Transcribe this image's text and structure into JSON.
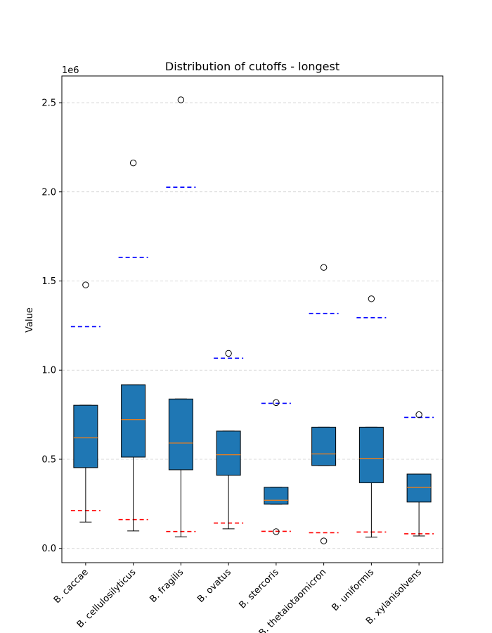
{
  "chart_data": {
    "type": "box",
    "title": "Distribution of cutoffs - longest",
    "xlabel": "",
    "ylabel": "Value",
    "y_scale_label": "1e6",
    "ylim": [
      -80000,
      2650000
    ],
    "yticks": [
      0,
      500000,
      1000000,
      1500000,
      2000000,
      2500000
    ],
    "ytick_labels": [
      "0.0",
      "0.5",
      "1.0",
      "1.5",
      "2.0",
      "2.5"
    ],
    "grid": "horizontal dashed",
    "categories": [
      "B. caccae",
      "B. cellulosilyticus",
      "B. fragilis",
      "B. ovatus",
      "B. stercoris",
      "B. thetaiotaomicron",
      "B. uniformis",
      "B. xylanisolvens"
    ],
    "boxes": [
      {
        "name": "B. caccae",
        "whisker_low": 148000,
        "q1": 453000,
        "median": 620000,
        "q3": 803000,
        "whisker_high": 803000,
        "outliers": [
          1478000
        ],
        "red_line": 212000,
        "blue_line": 1244000
      },
      {
        "name": "B. cellulosilyticus",
        "whisker_low": 98000,
        "q1": 512000,
        "median": 722000,
        "q3": 918000,
        "whisker_high": 918000,
        "outliers": [
          2162000
        ],
        "red_line": 162000,
        "blue_line": 1632000
      },
      {
        "name": "B. fragilis",
        "whisker_low": 65000,
        "q1": 441000,
        "median": 591000,
        "q3": 838000,
        "whisker_high": 838000,
        "outliers": [
          2516000
        ],
        "red_line": 95000,
        "blue_line": 2026000
      },
      {
        "name": "B. ovatus",
        "whisker_low": 110000,
        "q1": 410000,
        "median": 525000,
        "q3": 658000,
        "whisker_high": 658000,
        "outliers": [
          1094000
        ],
        "red_line": 142000,
        "blue_line": 1067000
      },
      {
        "name": "B. stercoris",
        "whisker_low": 248000,
        "q1": 248000,
        "median": 270000,
        "q3": 343000,
        "whisker_high": 343000,
        "outliers": [
          818000,
          94000
        ],
        "red_line": 96000,
        "blue_line": 814000
      },
      {
        "name": "B. thetaiotaomicron",
        "whisker_low": 465000,
        "q1": 465000,
        "median": 530000,
        "q3": 680000,
        "whisker_high": 680000,
        "outliers": [
          1576000,
          42000
        ],
        "red_line": 88000,
        "blue_line": 1318000
      },
      {
        "name": "B. uniformis",
        "whisker_low": 63000,
        "q1": 368000,
        "median": 505000,
        "q3": 680000,
        "whisker_high": 680000,
        "outliers": [
          1400000
        ],
        "red_line": 92000,
        "blue_line": 1294000
      },
      {
        "name": "B. xylanisolvens",
        "whisker_low": 70000,
        "q1": 260000,
        "median": 342000,
        "q3": 417000,
        "whisker_high": 417000,
        "outliers": [
          750000
        ],
        "red_line": 82000,
        "blue_line": 735000
      }
    ]
  },
  "colors": {
    "box_fill": "#1f77b4",
    "median": "#ff7f0e",
    "red_line": "#ff0000",
    "blue_line": "#0000ff",
    "grid": "#cccccc"
  }
}
